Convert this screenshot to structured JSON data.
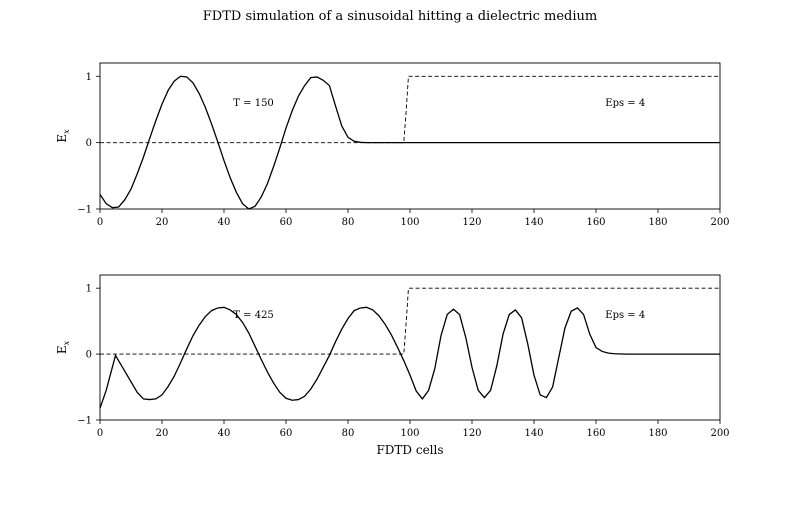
{
  "figure": {
    "title": "FDTD simulation of a sinusoidal hitting a dielectric medium"
  },
  "chart_data": [
    {
      "type": "line",
      "title": "",
      "xlabel": "",
      "ylabel": "E",
      "ylabel_sub": "x",
      "xlim": [
        0,
        200
      ],
      "ylim": [
        -1,
        1.2
      ],
      "xticks": [
        0,
        20,
        40,
        60,
        80,
        100,
        120,
        140,
        160,
        180,
        200
      ],
      "yticks": [
        -1,
        0,
        1
      ],
      "ytick_labels": [
        "−1",
        "0",
        "1"
      ],
      "grid": false,
      "annotations": [
        {
          "text": "T = 150",
          "x": 43,
          "y": 0.55
        },
        {
          "text": "Eps = 4",
          "x": 163,
          "y": 0.55
        }
      ],
      "series": [
        {
          "style": "solid",
          "x": [
            0,
            2,
            4,
            6,
            8,
            10,
            12,
            14,
            16,
            18,
            20,
            22,
            24,
            26,
            28,
            30,
            32,
            34,
            36,
            38,
            40,
            42,
            44,
            46,
            48,
            50,
            52,
            54,
            56,
            58,
            60,
            62,
            64,
            66,
            68,
            70,
            72,
            74,
            76,
            78,
            80,
            82,
            84,
            86,
            88,
            90,
            95,
            100,
            110,
            120,
            140,
            160,
            180,
            200
          ],
          "y": [
            -0.78,
            -0.92,
            -0.98,
            -0.97,
            -0.86,
            -0.7,
            -0.47,
            -0.22,
            0.06,
            0.33,
            0.58,
            0.79,
            0.93,
            1.0,
            0.99,
            0.9,
            0.74,
            0.53,
            0.28,
            0.01,
            -0.27,
            -0.53,
            -0.75,
            -0.92,
            -1.0,
            -0.96,
            -0.82,
            -0.62,
            -0.36,
            -0.08,
            0.22,
            0.48,
            0.7,
            0.86,
            0.98,
            0.99,
            0.94,
            0.86,
            0.55,
            0.25,
            0.08,
            0.02,
            0.005,
            0,
            0,
            0,
            0,
            0,
            0,
            0,
            0,
            0,
            0,
            0
          ]
        },
        {
          "style": "dashed",
          "x": [
            0,
            98,
            98.8,
            99.5,
            200
          ],
          "y": [
            0,
            0,
            0.5,
            1,
            1
          ]
        }
      ]
    },
    {
      "type": "line",
      "title": "",
      "xlabel": "FDTD cells",
      "ylabel": "E",
      "ylabel_sub": "x",
      "xlim": [
        0,
        200
      ],
      "ylim": [
        -1,
        1.2
      ],
      "xticks": [
        0,
        20,
        40,
        60,
        80,
        100,
        120,
        140,
        160,
        180,
        200
      ],
      "yticks": [
        -1,
        0,
        1
      ],
      "ytick_labels": [
        "−1",
        "0",
        "1"
      ],
      "grid": false,
      "annotations": [
        {
          "text": "T = 425",
          "x": 43,
          "y": 0.55
        },
        {
          "text": "Eps = 4",
          "x": 163,
          "y": 0.55
        }
      ],
      "series": [
        {
          "style": "solid",
          "x": [
            0,
            2,
            5,
            7,
            10,
            12,
            14,
            16,
            18,
            20,
            22,
            24,
            26,
            28,
            30,
            32,
            34,
            36,
            38,
            40,
            42,
            44,
            46,
            48,
            50,
            52,
            54,
            56,
            58,
            60,
            62,
            64,
            66,
            68,
            70,
            72,
            74,
            76,
            78,
            80,
            82,
            84,
            86,
            88,
            90,
            92,
            94,
            96,
            98,
            100,
            102,
            104,
            106,
            108,
            110,
            112,
            114,
            116,
            118,
            120,
            122,
            124,
            126,
            128,
            130,
            132,
            134,
            136,
            138,
            140,
            142,
            144,
            146,
            148,
            150,
            152,
            154,
            156,
            158,
            160,
            162,
            164,
            166,
            170,
            180,
            200
          ],
          "y": [
            -0.82,
            -0.55,
            -0.02,
            -0.18,
            -0.42,
            -0.58,
            -0.68,
            -0.69,
            -0.68,
            -0.62,
            -0.49,
            -0.33,
            -0.13,
            0.08,
            0.28,
            0.44,
            0.57,
            0.66,
            0.7,
            0.71,
            0.67,
            0.6,
            0.48,
            0.32,
            0.12,
            -0.08,
            -0.27,
            -0.44,
            -0.58,
            -0.67,
            -0.7,
            -0.69,
            -0.64,
            -0.53,
            -0.38,
            -0.2,
            -0.02,
            0.19,
            0.38,
            0.54,
            0.66,
            0.7,
            0.71,
            0.67,
            0.58,
            0.45,
            0.29,
            0.1,
            -0.1,
            -0.32,
            -0.56,
            -0.68,
            -0.55,
            -0.22,
            0.28,
            0.6,
            0.68,
            0.6,
            0.25,
            -0.2,
            -0.55,
            -0.66,
            -0.55,
            -0.18,
            0.3,
            0.6,
            0.67,
            0.55,
            0.15,
            -0.32,
            -0.62,
            -0.66,
            -0.5,
            -0.05,
            0.4,
            0.65,
            0.7,
            0.6,
            0.3,
            0.1,
            0.04,
            0.015,
            0.005,
            0,
            0,
            0
          ]
        },
        {
          "style": "dashed",
          "x": [
            0,
            98,
            98.8,
            99.5,
            200
          ],
          "y": [
            0,
            0,
            0.5,
            1,
            1
          ]
        }
      ]
    }
  ]
}
